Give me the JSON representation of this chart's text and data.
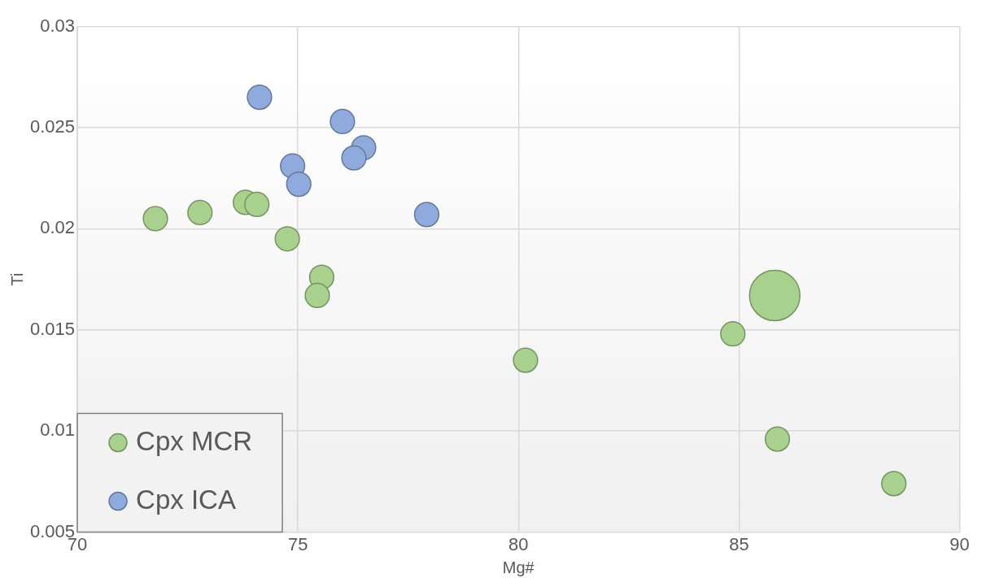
{
  "chart_data": {
    "type": "bubble",
    "xlabel": "Mg#",
    "ylabel": "Ti",
    "xlim": [
      70,
      90
    ],
    "xticks": [
      70,
      75,
      80,
      85,
      90
    ],
    "ylim": [
      0.005,
      0.03
    ],
    "yticks": [
      0.005,
      0.01,
      0.015,
      0.02,
      0.025,
      0.03
    ],
    "grid": true,
    "legend": "bottom left",
    "series": [
      {
        "name": "Cpx MCR",
        "color": "#a9d18e",
        "x": [
          71.77,
          72.78,
          73.81,
          74.07,
          74.76,
          75.54,
          75.44,
          80.16,
          84.86,
          85.81,
          85.87,
          88.51
        ],
        "values": [
          0.0205,
          0.0208,
          0.0213,
          0.0212,
          0.0195,
          0.0176,
          0.0167,
          0.0135,
          0.0148,
          0.0167,
          0.0096,
          0.0074
        ],
        "sizes": [
          0.23,
          0.23,
          0.23,
          0.23,
          0.23,
          0.23,
          0.23,
          0.23,
          0.23,
          1,
          0.23,
          0.23
        ]
      },
      {
        "name": "Cpx ICA",
        "color": "#8faadc",
        "x": [
          74.13,
          76.01,
          76.49,
          76.27,
          74.88,
          75.02,
          77.92
        ],
        "values": [
          0.0265,
          0.0253,
          0.024,
          0.0235,
          0.0231,
          0.0222,
          0.0207
        ],
        "sizes": [
          0.23,
          0.23,
          0.23,
          0.23,
          0.23,
          0.23,
          0.23
        ]
      }
    ]
  }
}
